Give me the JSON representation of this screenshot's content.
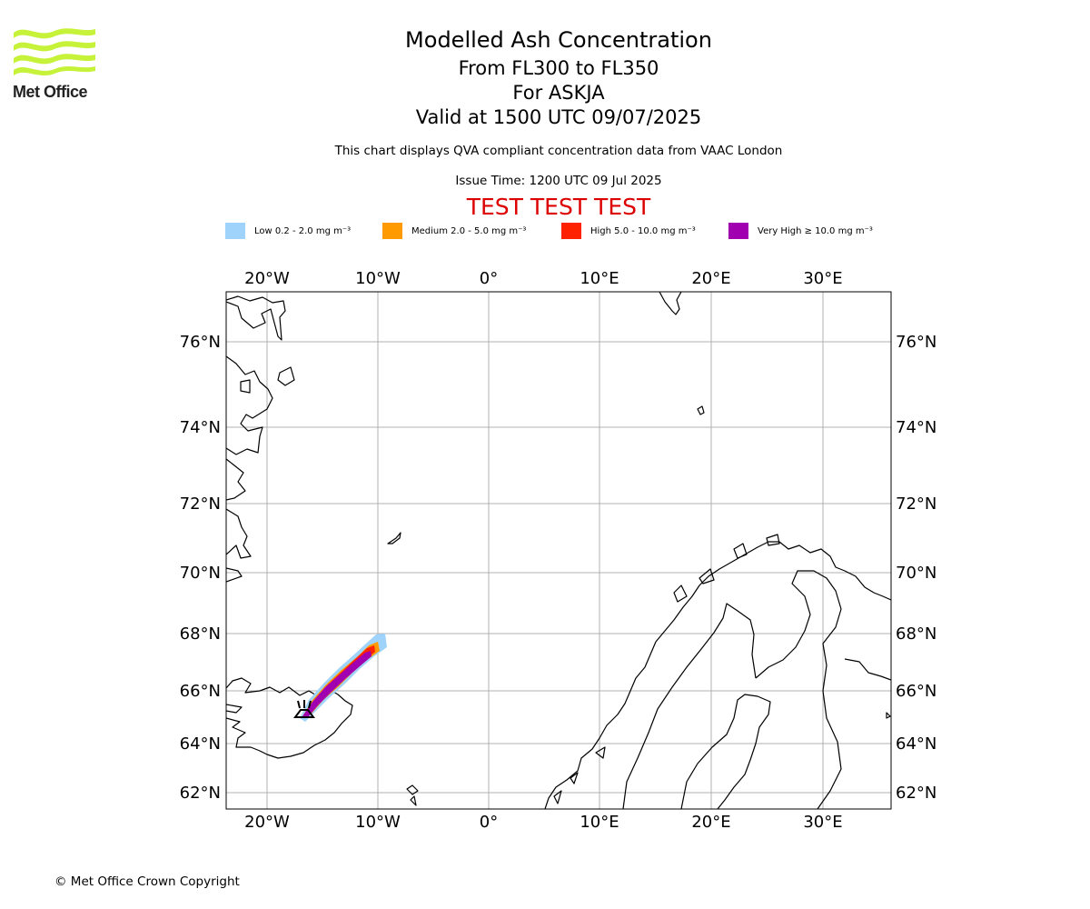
{
  "title": "Modelled Ash Concentration",
  "subtitle_lines": [
    "From FL300 to FL350",
    "For ASKJA",
    "Valid at 1500 UTC 09/07/2025"
  ],
  "description": "This chart displays QVA compliant concentration data from VAAC London",
  "issue_time": "Issue Time: 1200 UTC 09 Jul 2025",
  "test_banner": "TEST TEST TEST",
  "test_banner_color": "#dd0000",
  "logo": {
    "text": "Met Office",
    "color": "#c6f23a"
  },
  "legend": [
    {
      "label": "Low 0.2 - 2.0 mg m⁻³",
      "color": "#9fd3fb"
    },
    {
      "label": "Medium 2.0 - 5.0 mg m⁻³",
      "color": "#ff9a00"
    },
    {
      "label": "High 5.0 - 10.0 mg m⁻³",
      "color": "#ff2200"
    },
    {
      "label": "Very High ≥ 10.0 mg m⁻³",
      "color": "#a000b0"
    }
  ],
  "map": {
    "lon_labels": [
      "20°W",
      "10°W",
      "0°",
      "10°E",
      "20°E",
      "30°E"
    ],
    "lat_labels": [
      "62°N",
      "64°N",
      "66°N",
      "68°N",
      "70°N",
      "72°N",
      "74°N",
      "76°N"
    ],
    "volcano": "ASKJA"
  },
  "copyright": "© Met Office Crown Copyright"
}
